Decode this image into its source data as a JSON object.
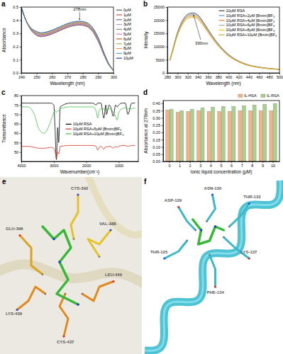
{
  "chart_data": [
    {
      "type": "line",
      "panel": "a",
      "x_label": "Wavelength (nm)",
      "y_label": "Absorbance",
      "legend": "right",
      "x": [
        240,
        243,
        246,
        250,
        253,
        256,
        260,
        265,
        270,
        275,
        278,
        282,
        286,
        290,
        294,
        297,
        300
      ],
      "xlim": [
        240,
        300
      ],
      "xticks": [
        240,
        250,
        260,
        270,
        280,
        290,
        300
      ],
      "ylim": [
        0,
        0.5
      ],
      "yticks": [
        {
          "value": 0,
          "label": "0.0"
        },
        0.1,
        0.2,
        0.3,
        0.4,
        0.5
      ],
      "annotations": [
        {
          "text": "278nm",
          "x": 278,
          "y": 0.393
        }
      ],
      "series": [
        {
          "name": "0μM",
          "color": "#555555",
          "values": [
            0.5,
            0.4,
            0.33,
            0.285,
            0.275,
            0.28,
            0.295,
            0.32,
            0.345,
            0.36,
            0.363,
            0.355,
            0.32,
            0.24,
            0.13,
            0.06,
            0.02
          ]
        },
        {
          "name": "1μM",
          "color": "#c0504d",
          "values": [
            0.5,
            0.4,
            0.332,
            0.288,
            0.278,
            0.283,
            0.298,
            0.323,
            0.348,
            0.363,
            0.366,
            0.358,
            0.323,
            0.243,
            0.132,
            0.061,
            0.02
          ]
        },
        {
          "name": "2μM",
          "color": "#8064a2",
          "values": [
            0.5,
            0.4,
            0.333,
            0.291,
            0.281,
            0.286,
            0.301,
            0.326,
            0.351,
            0.366,
            0.369,
            0.361,
            0.326,
            0.246,
            0.134,
            0.062,
            0.02
          ]
        },
        {
          "name": "3μM",
          "color": "#b09ad0",
          "values": [
            0.5,
            0.4,
            0.335,
            0.294,
            0.284,
            0.289,
            0.304,
            0.329,
            0.354,
            0.369,
            0.372,
            0.364,
            0.329,
            0.249,
            0.135,
            0.063,
            0.02
          ]
        },
        {
          "name": "4μM",
          "color": "#8c8c8c",
          "values": [
            0.5,
            0.4,
            0.336,
            0.297,
            0.287,
            0.292,
            0.307,
            0.332,
            0.357,
            0.372,
            0.375,
            0.367,
            0.332,
            0.252,
            0.137,
            0.064,
            0.02
          ]
        },
        {
          "name": "5μM",
          "color": "#e377c2",
          "values": [
            0.5,
            0.4,
            0.338,
            0.3,
            0.29,
            0.295,
            0.31,
            0.335,
            0.36,
            0.375,
            0.378,
            0.37,
            0.335,
            0.255,
            0.139,
            0.065,
            0.02
          ]
        },
        {
          "name": "6μM",
          "color": "#b5651d",
          "values": [
            0.5,
            0.4,
            0.339,
            0.303,
            0.293,
            0.298,
            0.313,
            0.338,
            0.363,
            0.378,
            0.381,
            0.373,
            0.338,
            0.258,
            0.141,
            0.065,
            0.02
          ]
        },
        {
          "name": "7μM",
          "color": "#9bbb59",
          "values": [
            0.5,
            0.4,
            0.341,
            0.306,
            0.296,
            0.301,
            0.316,
            0.341,
            0.366,
            0.381,
            0.384,
            0.376,
            0.341,
            0.261,
            0.143,
            0.066,
            0.02
          ]
        },
        {
          "name": "8μM",
          "color": "#f79646",
          "values": [
            0.5,
            0.4,
            0.342,
            0.309,
            0.299,
            0.304,
            0.319,
            0.344,
            0.369,
            0.384,
            0.387,
            0.379,
            0.344,
            0.264,
            0.144,
            0.067,
            0.02
          ]
        },
        {
          "name": "9μM",
          "color": "#4bacc6",
          "values": [
            0.5,
            0.4,
            0.344,
            0.312,
            0.302,
            0.307,
            0.322,
            0.347,
            0.372,
            0.387,
            0.39,
            0.382,
            0.347,
            0.267,
            0.146,
            0.068,
            0.02
          ]
        },
        {
          "name": "10μM",
          "color": "#1f4e9f",
          "values": [
            0.5,
            0.4,
            0.345,
            0.315,
            0.305,
            0.31,
            0.325,
            0.35,
            0.375,
            0.39,
            0.393,
            0.385,
            0.35,
            0.27,
            0.148,
            0.069,
            0.02
          ]
        }
      ]
    },
    {
      "type": "line",
      "panel": "b",
      "x_label": "Wavelength (nm)",
      "y_label": "Intensity",
      "legend": "upper right",
      "x": [
        285,
        290,
        300,
        310,
        320,
        330,
        340,
        350,
        360,
        380,
        400,
        420,
        440,
        460,
        480,
        500
      ],
      "xlim": [
        280,
        500
      ],
      "xticks": [
        280,
        300,
        320,
        340,
        360,
        380,
        400,
        420,
        440,
        460,
        480,
        500
      ],
      "ylim": [
        0,
        25000
      ],
      "yticks": [
        0,
        5000,
        10000,
        15000,
        20000,
        25000
      ],
      "annotations": [
        {
          "text": "330nm",
          "x": 330,
          "y": 22800
        }
      ],
      "series": [
        {
          "name": "10μM RSA",
          "color": "#404040",
          "values": [
            5000,
            8500,
            15500,
            20000,
            22300,
            22800,
            22000,
            19500,
            16500,
            11000,
            7000,
            4500,
            3000,
            2200,
            1700,
            1400
          ]
        },
        {
          "name": "10μM RSA+2μM [Bmim]BF₄",
          "color": "#5b9bd5",
          "values": [
            4930,
            8370,
            15270,
            19700,
            21970,
            22460,
            21670,
            19210,
            16250,
            10840,
            6900,
            4430,
            2960,
            2170,
            1670,
            1380
          ]
        },
        {
          "name": "10μM RSA+4μM [Bmim]BF₄",
          "color": "#ed7d31",
          "values": [
            4850,
            8250,
            15040,
            19400,
            21630,
            22120,
            21340,
            18920,
            16010,
            10670,
            6790,
            4370,
            2910,
            2130,
            1650,
            1360
          ]
        },
        {
          "name": "10μM RSA+6μM [Bmim]BF₄",
          "color": "#a5a5a5",
          "values": [
            4780,
            8120,
            14800,
            19100,
            21300,
            21770,
            21010,
            18620,
            15760,
            10510,
            6690,
            4300,
            2870,
            2100,
            1620,
            1340
          ]
        },
        {
          "name": "10μM RSA+8μM [Bmim]BF₄",
          "color": "#ffc000",
          "values": [
            4700,
            7990,
            14570,
            18800,
            20960,
            21430,
            20680,
            18330,
            15510,
            10340,
            6580,
            4230,
            2820,
            2070,
            1600,
            1320
          ]
        },
        {
          "name": "10μM RSA+10μM [Bmim]BF₄",
          "color": "#c9a227",
          "values": [
            4630,
            7860,
            14340,
            18500,
            20630,
            21090,
            20350,
            18040,
            15260,
            10180,
            6480,
            4160,
            2780,
            2040,
            1570,
            1300
          ]
        }
      ]
    },
    {
      "type": "line",
      "panel": "c",
      "x_label": "Wavenumber(cm⁻¹)",
      "y_label": "Transmittance",
      "legend": "center",
      "x": [
        4000,
        3800,
        3600,
        3450,
        3300,
        3100,
        3000,
        2960,
        2920,
        2880,
        2850,
        2800,
        2500,
        2200,
        2000,
        1800,
        1700,
        1650,
        1600,
        1550,
        1460,
        1400,
        1380,
        1300,
        1250,
        1170,
        1100,
        1050,
        1000,
        900,
        800,
        720,
        600,
        500
      ],
      "xlim": [
        4000,
        400
      ],
      "xticks": [
        4000,
        3000,
        2000,
        1000
      ],
      "ylim": [
        45,
        80
      ],
      "yticks": [
        50,
        55,
        60,
        65,
        70,
        75,
        80
      ],
      "series": [
        {
          "name": "10μM RSA",
          "color": "#000000",
          "values": [
            76,
            76,
            76,
            76,
            76,
            76,
            75,
            62,
            46,
            63,
            55,
            74,
            76,
            76,
            76,
            76,
            75,
            76,
            76,
            76,
            68,
            75,
            70,
            75,
            74,
            69,
            75,
            74,
            75,
            76,
            76,
            70,
            76,
            76
          ]
        },
        {
          "name": "10μM RSA+5μM [Bmim]BF₄",
          "color": "#e03020",
          "values": [
            53,
            53,
            52.5,
            52,
            52,
            52.5,
            52,
            50,
            47,
            50,
            49,
            53,
            53.5,
            53.5,
            53.5,
            53.5,
            53,
            51,
            52.5,
            53,
            51.5,
            53,
            52.5,
            53,
            53,
            52,
            53,
            52.5,
            53,
            53.5,
            53.5,
            53,
            53.5,
            53.5
          ]
        },
        {
          "name": "10μM RSA+10μM [Bmim]BF₄",
          "color": "#40c040",
          "values": [
            74,
            74,
            70,
            62,
            60,
            66,
            71,
            72,
            71,
            72,
            72,
            73,
            74,
            74,
            74,
            74,
            72,
            68,
            72,
            73,
            73,
            72,
            72.5,
            73,
            73,
            71,
            69,
            67,
            71,
            73,
            73.5,
            73,
            73,
            73.5
          ]
        }
      ]
    },
    {
      "type": "bar",
      "panel": "d",
      "x_label": "Ionic liquid concentration (μM)",
      "y_label": "Absorbance at 278nm",
      "legend": "top",
      "categories": [
        "0",
        "1",
        "2",
        "3",
        "4",
        "5",
        "6",
        "7",
        "8",
        "9",
        "10"
      ],
      "ylim": [
        0,
        0.42
      ],
      "yticks": [
        {
          "value": 0,
          "label": "0.00"
        },
        0.05,
        {
          "value": 0.1,
          "label": "0.10"
        },
        0.15,
        {
          "value": 0.2,
          "label": "0.20"
        },
        0.25,
        {
          "value": 0.3,
          "label": "0.30"
        },
        0.35,
        {
          "value": 0.4,
          "label": "0.40"
        }
      ],
      "series": [
        {
          "name": "IL-HSA",
          "color": "#f4b183",
          "values": [
            0.355,
            0.34,
            0.345,
            0.35,
            0.345,
            0.345,
            0.345,
            0.35,
            0.35,
            0.35,
            0.35
          ]
        },
        {
          "name": "IL-RSA",
          "color": "#a9d18e",
          "values": [
            0.36,
            0.35,
            0.36,
            0.37,
            0.375,
            0.38,
            0.38,
            0.385,
            0.39,
            0.395,
            0.4
          ]
        }
      ]
    }
  ],
  "docking_views": [
    {
      "panel": "e",
      "residues": [
        "CYS-392",
        "GLU-396",
        "VAL-388",
        "LEU-440",
        "LYS-439",
        "CYS-437"
      ]
    },
    {
      "panel": "f",
      "residues": [
        "ASN-130",
        "ASP-129",
        "THR-133",
        "LYS-137",
        "THR-125",
        "PHE-134"
      ]
    }
  ]
}
